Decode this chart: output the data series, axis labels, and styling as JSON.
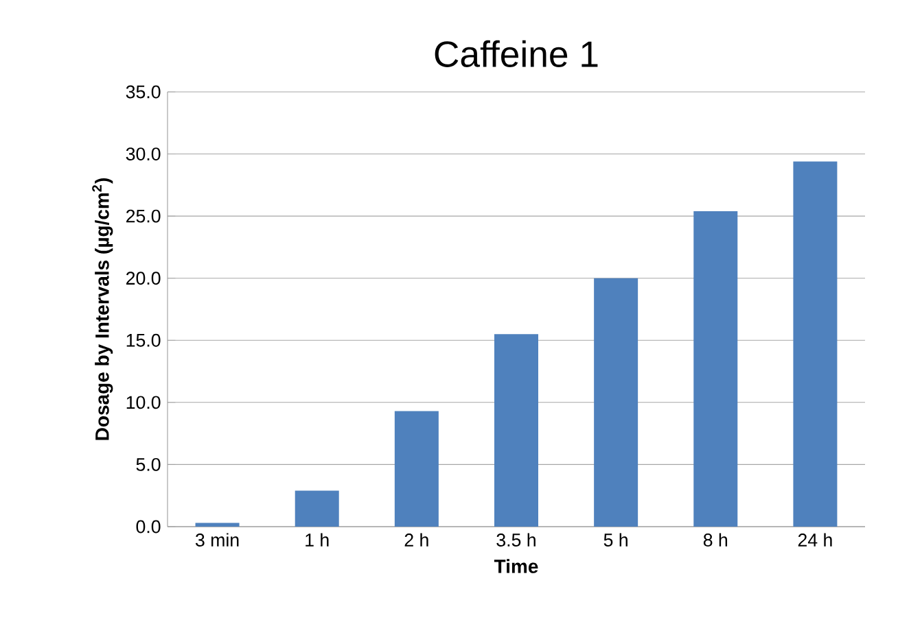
{
  "chart_data": {
    "type": "bar",
    "title": "Caffeine 1",
    "xlabel": "Time",
    "ylabel": "Dosage by Intervals (µg/cm$^{2}$)",
    "categories": [
      "3 min",
      "1 h",
      "2 h",
      "3.5 h",
      "5 h",
      "8 h",
      "24 h"
    ],
    "values": [
      0.3,
      2.9,
      9.3,
      15.5,
      20.0,
      25.4,
      29.4
    ],
    "color": "#4f81bd",
    "ylim": [
      0,
      35
    ],
    "yticks": [
      {
        "value": 0,
        "label": "0.0"
      },
      {
        "value": 5,
        "label": "5.0"
      },
      {
        "value": 10,
        "label": "10.0"
      },
      {
        "value": 15,
        "label": "15.0"
      },
      {
        "value": 20,
        "label": "20.0"
      },
      {
        "value": 25,
        "label": "25.0"
      },
      {
        "value": 30,
        "label": "30.0"
      },
      {
        "value": 35,
        "label": "35.0"
      }
    ],
    "grid": "y"
  }
}
